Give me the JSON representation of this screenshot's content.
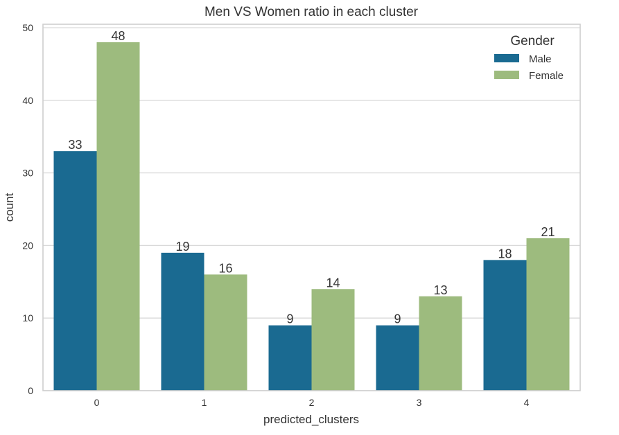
{
  "chart_data": {
    "type": "bar",
    "title": "Men VS Women ratio in each cluster",
    "xlabel": "predicted_clusters",
    "ylabel": "count",
    "categories": [
      "0",
      "1",
      "2",
      "3",
      "4"
    ],
    "series": [
      {
        "name": "Male",
        "color": "#1a6a91",
        "values": [
          33,
          19,
          9,
          9,
          18
        ]
      },
      {
        "name": "Female",
        "color": "#9dbb7e",
        "values": [
          48,
          16,
          14,
          13,
          21
        ]
      }
    ],
    "ylim": [
      0,
      50
    ],
    "yticks": [
      0,
      10,
      20,
      30,
      40,
      50
    ],
    "grid": true,
    "legend": {
      "title": "Gender",
      "placement": "top-right"
    },
    "colors": {
      "grid": "#d9d9d9",
      "frame": "#cfcfcf",
      "background": "#ffffff"
    }
  }
}
